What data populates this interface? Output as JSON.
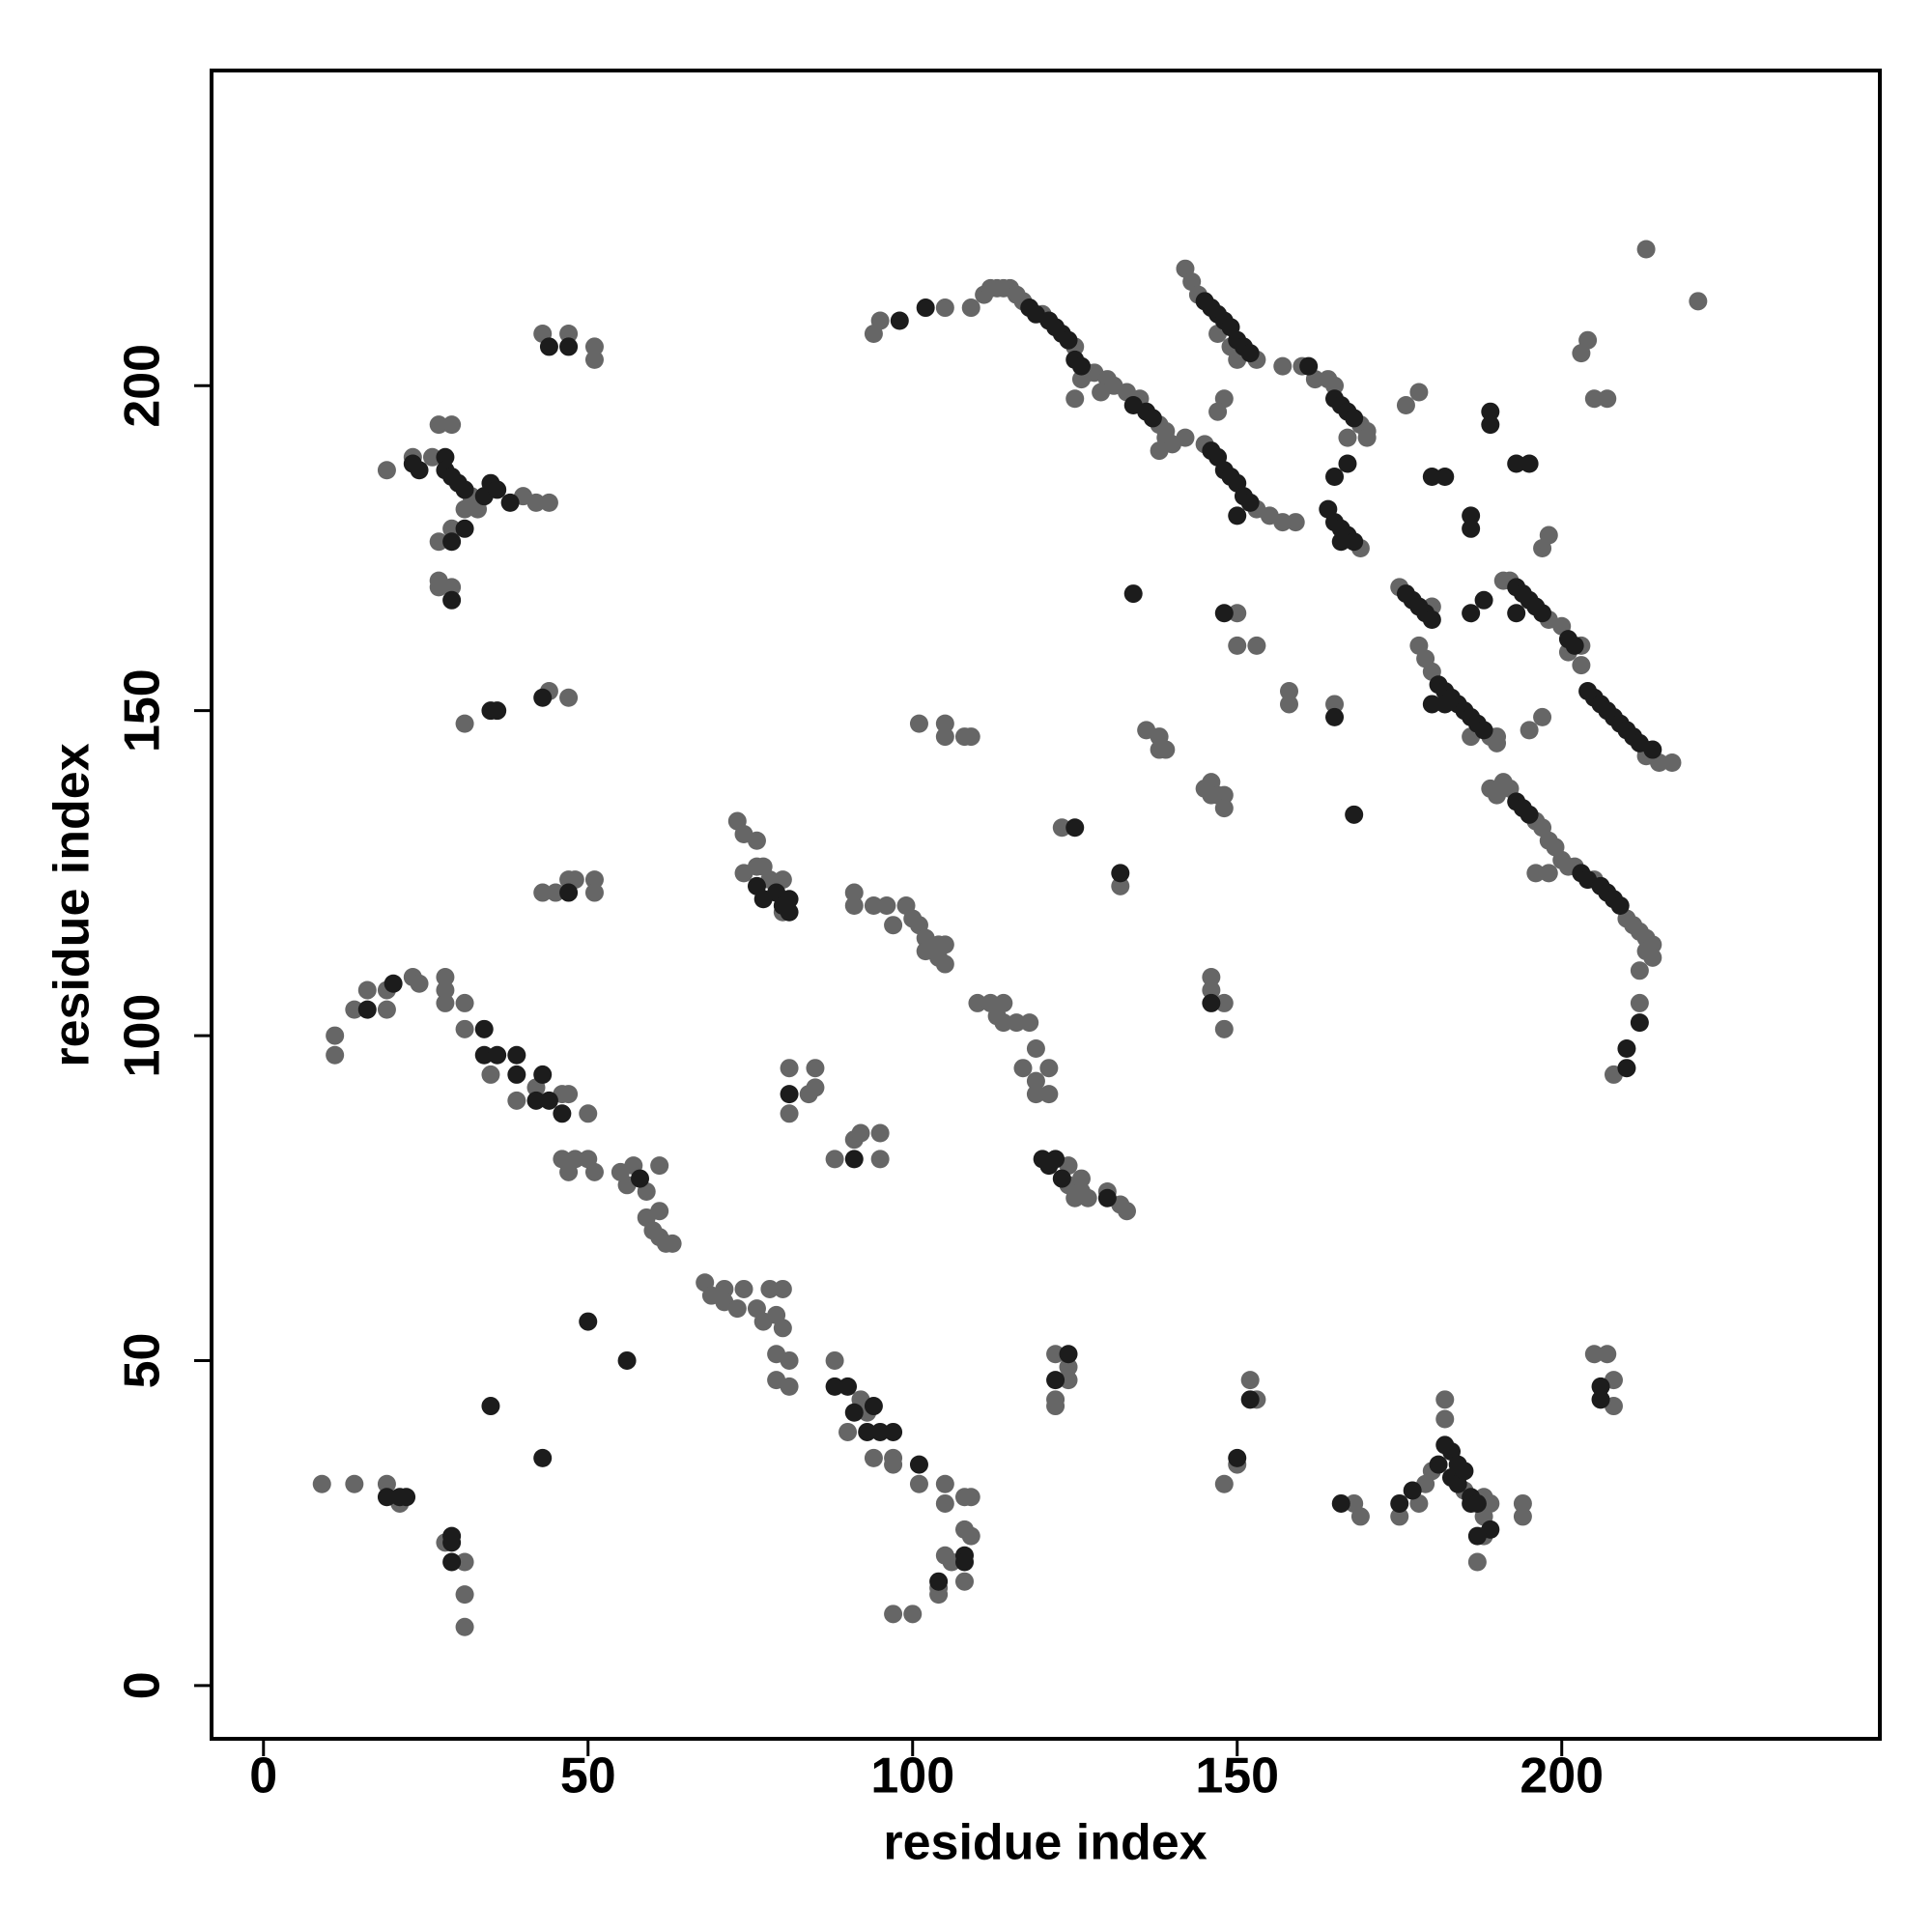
{
  "chart_data": {
    "type": "scatter",
    "xlabel": "residue index",
    "ylabel": "residue index",
    "xlim": [
      -8,
      249
    ],
    "ylim": [
      -8.2,
      248.5
    ],
    "xticks": [
      0,
      50,
      100,
      150,
      200
    ],
    "yticks": [
      0,
      50,
      100,
      150,
      200
    ],
    "series": [
      {
        "color": "#666666",
        "x": [
          9,
          14,
          19,
          21,
          28,
          31,
          31,
          31,
          11,
          11,
          14,
          16,
          19,
          19,
          23,
          24,
          28,
          28,
          28,
          31,
          31,
          35,
          39,
          42,
          46,
          47,
          50,
          46,
          47,
          48,
          50,
          51,
          55,
          56,
          57,
          59,
          61,
          59,
          60,
          61,
          61,
          62,
          63,
          68,
          69,
          71,
          71,
          73,
          74,
          76,
          77,
          78,
          79,
          80,
          80,
          79,
          81,
          79,
          81,
          88,
          90,
          92,
          93,
          94,
          97,
          97,
          101,
          105,
          105,
          108,
          109,
          108,
          109,
          105,
          104,
          104,
          108,
          106,
          97,
          100,
          19,
          23,
          26,
          27,
          29,
          32,
          33,
          40,
          42,
          44,
          31,
          33,
          29,
          27,
          27,
          29,
          27,
          31,
          44,
          47,
          43,
          47,
          51,
          51,
          43,
          45,
          47,
          48,
          51,
          51,
          73,
          74,
          76,
          74,
          76,
          77,
          78,
          80,
          80,
          91,
          91,
          94,
          96,
          97,
          99,
          100,
          101,
          102,
          102,
          104,
          105,
          105,
          104,
          110,
          112,
          113,
          114,
          114,
          116,
          118,
          119,
          117,
          119,
          119,
          121,
          121,
          124,
          124,
          125,
          126,
          126,
          127,
          130,
          132,
          133,
          81,
          81,
          84,
          85,
          85,
          88,
          91,
          92,
          95,
          95,
          122,
          124,
          124,
          122,
          122,
          123,
          132,
          94,
          95,
          105,
          109,
          111,
          112,
          113,
          114,
          115,
          116,
          117,
          120,
          125,
          127,
          128,
          130,
          131,
          133,
          135,
          138,
          139,
          140,
          138,
          139,
          142,
          125,
          126,
          129,
          142,
          143,
          144,
          153,
          150,
          149,
          147,
          157,
          160,
          162,
          164,
          169,
          170,
          170,
          167,
          165,
          145,
          153,
          155,
          157,
          159,
          148,
          147,
          169,
          150,
          150,
          153,
          158,
          158,
          165,
          136,
          138,
          139,
          138,
          101,
          105,
          105,
          108,
          109,
          145,
          146,
          147,
          148,
          148,
          146,
          146,
          146,
          148,
          148,
          175,
          180,
          178,
          179,
          180,
          189,
          190,
          190,
          186,
          176,
          178,
          191,
          192,
          198,
          200,
          203,
          201,
          197,
          198,
          195,
          197,
          213,
          213,
          215,
          217,
          203,
          189,
          190,
          191,
          192,
          196,
          197,
          198,
          199,
          200,
          201,
          202,
          205,
          210,
          211,
          212,
          213,
          213,
          214,
          214,
          212,
          212,
          208,
          196,
          198,
          203,
          204,
          205,
          207,
          213,
          221,
          205,
          207,
          208,
          208,
          152,
          153,
          150,
          148,
          168,
          169,
          175,
          178,
          179,
          180,
          182,
          182,
          185,
          188,
          188,
          189,
          188,
          187,
          194,
          194
        ],
        "y": [
          31,
          31,
          31,
          28,
          22,
          19,
          14,
          9,
          100,
          97,
          104,
          107,
          107,
          104,
          109,
          108,
          109,
          107,
          105,
          105,
          101,
          94,
          90,
          92,
          91,
          91,
          88,
          81,
          79,
          81,
          81,
          79,
          79,
          77,
          80,
          76,
          80,
          72,
          70,
          73,
          69,
          68,
          68,
          62,
          60,
          61,
          59,
          58,
          61,
          58,
          56,
          61,
          57,
          61,
          55,
          51,
          50,
          47,
          46,
          50,
          39,
          44,
          42,
          35,
          35,
          34,
          31,
          31,
          28,
          29,
          29,
          24,
          23,
          20,
          15,
          14,
          16,
          19,
          11,
          11,
          187,
          189,
          189,
          194,
          194,
          183,
          182,
          183,
          182,
          182,
          181,
          181,
          178,
          176,
          170,
          169,
          169,
          148,
          153,
          152,
          208,
          208,
          206,
          204,
          122,
          122,
          124,
          124,
          124,
          122,
          133,
          131,
          130,
          125,
          126,
          126,
          124,
          124,
          119,
          122,
          120,
          120,
          120,
          117,
          120,
          118,
          117,
          115,
          113,
          114,
          111,
          114,
          112,
          105,
          105,
          103,
          105,
          102,
          102,
          102,
          98,
          95,
          93,
          91,
          95,
          91,
          80,
          77,
          75,
          78,
          76,
          75,
          76,
          74,
          73,
          95,
          88,
          91,
          92,
          95,
          81,
          84,
          85,
          85,
          81,
          51,
          49,
          47,
          44,
          43,
          132,
          123,
          208,
          210,
          212,
          212,
          214,
          215,
          215,
          215,
          215,
          214,
          213,
          211,
          206,
          202,
          202,
          201,
          200,
          199,
          198,
          194,
          192,
          191,
          190,
          193,
          192,
          198,
          201,
          199,
          218,
          216,
          214,
          204,
          204,
          206,
          208,
          203,
          203,
          201,
          201,
          194,
          193,
          192,
          192,
          200,
          191,
          181,
          180,
          179,
          179,
          198,
          196,
          175,
          165,
          160,
          160,
          153,
          151,
          151,
          147,
          144,
          144,
          146,
          148,
          148,
          146,
          146,
          146,
          138,
          139,
          137,
          137,
          135,
          137,
          109,
          107,
          105,
          101,
          169,
          166,
          160,
          158,
          156,
          146,
          145,
          146,
          146,
          197,
          199,
          170,
          170,
          164,
          163,
          160,
          159,
          175,
          177,
          147,
          149,
          144,
          143,
          142,
          142,
          157,
          138,
          137,
          139,
          138,
          133,
          132,
          130,
          129,
          127,
          126,
          126,
          124,
          118,
          117,
          116,
          115,
          113,
          114,
          112,
          110,
          105,
          94,
          125,
          125,
          205,
          207,
          198,
          198,
          221,
          213,
          51,
          51,
          47,
          43,
          47,
          44,
          34,
          31,
          28,
          26,
          26,
          28,
          31,
          33,
          41,
          44,
          30,
          29,
          26,
          28,
          23,
          19,
          28,
          26
        ]
      },
      {
        "color": "#1c1c1c",
        "x": [
          19,
          21,
          22,
          29,
          29,
          29,
          35,
          43,
          50,
          56,
          16,
          20,
          34,
          34,
          36,
          39,
          39,
          42,
          43,
          44,
          46,
          58,
          88,
          90,
          91,
          94,
          93,
          95,
          97,
          101,
          108,
          108,
          104,
          23,
          24,
          28,
          28,
          29,
          30,
          31,
          34,
          35,
          36,
          38,
          31,
          29,
          29,
          35,
          36,
          43,
          44,
          47,
          47,
          76,
          77,
          79,
          80,
          81,
          81,
          120,
          121,
          122,
          123,
          130,
          81,
          91,
          124,
          122,
          125,
          132,
          98,
          102,
          118,
          119,
          121,
          122,
          123,
          124,
          125,
          126,
          134,
          136,
          137,
          145,
          146,
          147,
          148,
          149,
          150,
          151,
          152,
          161,
          165,
          166,
          167,
          168,
          146,
          147,
          148,
          149,
          150,
          151,
          152,
          150,
          164,
          165,
          166,
          167,
          168,
          166,
          165,
          167,
          134,
          148,
          165,
          168,
          146,
          176,
          177,
          178,
          179,
          180,
          181,
          182,
          183,
          184,
          185,
          186,
          187,
          188,
          180,
          182,
          180,
          182,
          186,
          186,
          186,
          188,
          189,
          189,
          193,
          195,
          193,
          193,
          194,
          195,
          196,
          197,
          201,
          202,
          204,
          205,
          206,
          207,
          208,
          209,
          210,
          211,
          212,
          214,
          193,
          194,
          195,
          203,
          204,
          206,
          207,
          208,
          209,
          212,
          210,
          210,
          206,
          206,
          152,
          150,
          166,
          175,
          177,
          181,
          182,
          183,
          183,
          184,
          184,
          185,
          186,
          186,
          187,
          189,
          187
        ],
        "y": [
          29,
          29,
          29,
          23,
          22,
          19,
          43,
          35,
          56,
          50,
          104,
          108,
          101,
          97,
          97,
          97,
          94,
          90,
          94,
          90,
          88,
          78,
          46,
          46,
          42,
          43,
          39,
          39,
          39,
          34,
          20,
          19,
          16,
          188,
          187,
          189,
          187,
          186,
          185,
          184,
          183,
          185,
          184,
          182,
          178,
          176,
          167,
          150,
          150,
          152,
          206,
          206,
          122,
          123,
          121,
          122,
          120,
          121,
          119,
          81,
          80,
          81,
          78,
          75,
          91,
          81,
          51,
          47,
          132,
          125,
          210,
          212,
          212,
          211,
          210,
          209,
          208,
          207,
          204,
          203,
          197,
          196,
          195,
          213,
          212,
          211,
          210,
          209,
          207,
          206,
          205,
          203,
          198,
          197,
          196,
          195,
          190,
          189,
          187,
          186,
          185,
          183,
          182,
          180,
          181,
          179,
          178,
          177,
          176,
          176,
          186,
          188,
          168,
          165,
          149,
          134,
          105,
          168,
          167,
          166,
          165,
          164,
          154,
          153,
          152,
          151,
          150,
          149,
          148,
          147,
          151,
          151,
          186,
          186,
          180,
          178,
          165,
          167,
          196,
          194,
          188,
          188,
          165,
          169,
          168,
          167,
          166,
          165,
          161,
          160,
          153,
          152,
          151,
          150,
          149,
          148,
          147,
          146,
          145,
          144,
          136,
          135,
          134,
          125,
          124,
          123,
          122,
          121,
          120,
          102,
          98,
          95,
          46,
          44,
          44,
          35,
          28,
          28,
          30,
          34,
          37,
          36,
          32,
          31,
          34,
          33,
          29,
          28,
          28,
          24,
          23
        ]
      }
    ]
  }
}
